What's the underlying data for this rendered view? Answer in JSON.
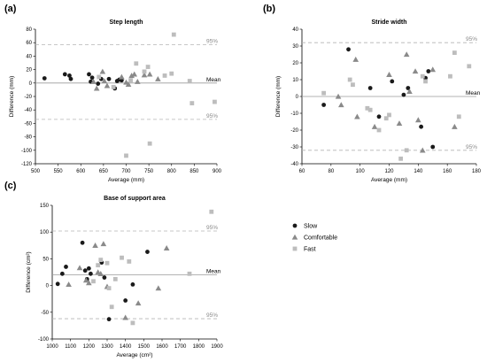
{
  "chart_data": [
    {
      "panel_label": "(a)",
      "type": "scatter",
      "title": "Step length",
      "xlabel": "Average (mm)",
      "ylabel": "Difference (mm)",
      "xlim": [
        500,
        900
      ],
      "ylim": [
        -120,
        80
      ],
      "xticks": [
        500,
        550,
        600,
        650,
        700,
        750,
        800,
        850,
        900
      ],
      "yticks": [
        -120,
        -100,
        -80,
        -60,
        -40,
        -20,
        0,
        20,
        40,
        60,
        80
      ],
      "mean": 0,
      "mean_label": "Mean",
      "upper_loa": 57,
      "lower_loa": -54,
      "loa_label": "95%",
      "series": [
        {
          "name": "Slow",
          "marker": "circle",
          "color": "#1a1a1a",
          "points": [
            [
              520,
              7
            ],
            [
              565,
              13
            ],
            [
              575,
              11
            ],
            [
              578,
              6
            ],
            [
              618,
              13
            ],
            [
              625,
              8
            ],
            [
              622,
              2
            ],
            [
              638,
              -1
            ],
            [
              645,
              6
            ],
            [
              662,
              6
            ],
            [
              675,
              -8
            ],
            [
              680,
              3
            ],
            [
              685,
              5
            ],
            [
              690,
              4
            ]
          ]
        },
        {
          "name": "Comfortable",
          "marker": "triangle",
          "color": "#8a8a8a",
          "points": [
            [
              628,
              2
            ],
            [
              635,
              -8
            ],
            [
              648,
              17
            ],
            [
              652,
              3
            ],
            [
              658,
              -4
            ],
            [
              690,
              9
            ],
            [
              700,
              1
            ],
            [
              705,
              -2
            ],
            [
              712,
              11
            ],
            [
              718,
              13
            ],
            [
              725,
              2
            ],
            [
              740,
              12
            ],
            [
              752,
              13
            ],
            [
              770,
              6
            ]
          ]
        },
        {
          "name": "Fast",
          "marker": "square",
          "color": "#bdbdbd",
          "points": [
            [
              640,
              9
            ],
            [
              672,
              -6
            ],
            [
              700,
              -108
            ],
            [
              710,
              4
            ],
            [
              722,
              29
            ],
            [
              740,
              17
            ],
            [
              748,
              24
            ],
            [
              752,
              -90
            ],
            [
              785,
              11
            ],
            [
              800,
              14
            ],
            [
              805,
              72
            ],
            [
              840,
              3
            ],
            [
              845,
              -30
            ],
            [
              895,
              -28
            ]
          ]
        }
      ]
    },
    {
      "panel_label": "(b)",
      "type": "scatter",
      "title": "Stride width",
      "xlabel": "Average (mm)",
      "ylabel": "Difference (mm)",
      "xlim": [
        60,
        180
      ],
      "ylim": [
        -40,
        40
      ],
      "xticks": [
        60,
        80,
        100,
        120,
        140,
        160,
        180
      ],
      "yticks": [
        -40,
        -30,
        -20,
        -10,
        0,
        10,
        20,
        30,
        40
      ],
      "mean": 0,
      "mean_label": "Mean",
      "upper_loa": 32,
      "lower_loa": -32,
      "loa_label": "95%",
      "series": [
        {
          "name": "Slow",
          "marker": "circle",
          "color": "#1a1a1a",
          "points": [
            [
              75,
              -5
            ],
            [
              92,
              28
            ],
            [
              107,
              5
            ],
            [
              113,
              -12
            ],
            [
              122,
              9
            ],
            [
              130,
              1
            ],
            [
              133,
              5
            ],
            [
              142,
              -18
            ],
            [
              145,
              11
            ],
            [
              147,
              15
            ],
            [
              150,
              -30
            ]
          ]
        },
        {
          "name": "Comfortable",
          "marker": "triangle",
          "color": "#8a8a8a",
          "points": [
            [
              85,
              0
            ],
            [
              87,
              -5
            ],
            [
              97,
              22
            ],
            [
              98,
              -12
            ],
            [
              110,
              -18
            ],
            [
              120,
              13
            ],
            [
              127,
              -16
            ],
            [
              132,
              25
            ],
            [
              134,
              3
            ],
            [
              138,
              15
            ],
            [
              140,
              -14
            ],
            [
              143,
              -32
            ],
            [
              150,
              16
            ],
            [
              165,
              -18
            ]
          ]
        },
        {
          "name": "Fast",
          "marker": "square",
          "color": "#bdbdbd",
          "points": [
            [
              75,
              2
            ],
            [
              93,
              10
            ],
            [
              95,
              7
            ],
            [
              105,
              -7
            ],
            [
              107,
              -8
            ],
            [
              113,
              -20
            ],
            [
              118,
              -13
            ],
            [
              120,
              -11
            ],
            [
              128,
              -37
            ],
            [
              132,
              -32
            ],
            [
              143,
              12
            ],
            [
              145,
              9
            ],
            [
              162,
              12
            ],
            [
              165,
              26
            ],
            [
              168,
              -12
            ],
            [
              175,
              18
            ]
          ]
        }
      ]
    },
    {
      "panel_label": "(c)",
      "type": "scatter",
      "title": "Base of support area",
      "xlabel": "Average (cm²)",
      "ylabel": "Difference (cm²)",
      "xlim": [
        1000,
        1900
      ],
      "ylim": [
        -100,
        150
      ],
      "xticks": [
        1000,
        1100,
        1200,
        1300,
        1400,
        1500,
        1600,
        1700,
        1800,
        1900
      ],
      "yticks": [
        -100,
        -50,
        0,
        50,
        100,
        150
      ],
      "mean": 20,
      "mean_label": "Mean",
      "upper_loa": 102,
      "lower_loa": -62,
      "loa_label": "95%",
      "series": [
        {
          "name": "Slow",
          "marker": "circle",
          "color": "#1a1a1a",
          "points": [
            [
              1030,
              3
            ],
            [
              1055,
              22
            ],
            [
              1075,
              35
            ],
            [
              1165,
              80
            ],
            [
              1180,
              28
            ],
            [
              1190,
              12
            ],
            [
              1200,
              32
            ],
            [
              1210,
              22
            ],
            [
              1270,
              43
            ],
            [
              1285,
              15
            ],
            [
              1310,
              -63
            ],
            [
              1400,
              -28
            ],
            [
              1440,
              2
            ],
            [
              1520,
              63
            ]
          ]
        },
        {
          "name": "Comfortable",
          "marker": "triangle",
          "color": "#8a8a8a",
          "points": [
            [
              1090,
              2
            ],
            [
              1150,
              33
            ],
            [
              1185,
              10
            ],
            [
              1200,
              5
            ],
            [
              1235,
              75
            ],
            [
              1250,
              25
            ],
            [
              1265,
              22
            ],
            [
              1280,
              78
            ],
            [
              1300,
              -2
            ],
            [
              1400,
              -60
            ],
            [
              1470,
              -33
            ],
            [
              1580,
              -5
            ],
            [
              1625,
              70
            ]
          ]
        },
        {
          "name": "Fast",
          "marker": "square",
          "color": "#bdbdbd",
          "points": [
            [
              1225,
              8
            ],
            [
              1250,
              38
            ],
            [
              1265,
              48
            ],
            [
              1300,
              42
            ],
            [
              1310,
              -5
            ],
            [
              1325,
              -40
            ],
            [
              1345,
              12
            ],
            [
              1380,
              52
            ],
            [
              1420,
              45
            ],
            [
              1440,
              -70
            ],
            [
              1750,
              22
            ],
            [
              1870,
              138
            ]
          ]
        }
      ]
    }
  ],
  "legend": {
    "items": [
      {
        "label": "Slow",
        "marker": "circle",
        "color": "#1a1a1a"
      },
      {
        "label": "Comfortable",
        "marker": "triangle",
        "color": "#8a8a8a"
      },
      {
        "label": "Fast",
        "marker": "square",
        "color": "#bdbdbd"
      }
    ]
  }
}
